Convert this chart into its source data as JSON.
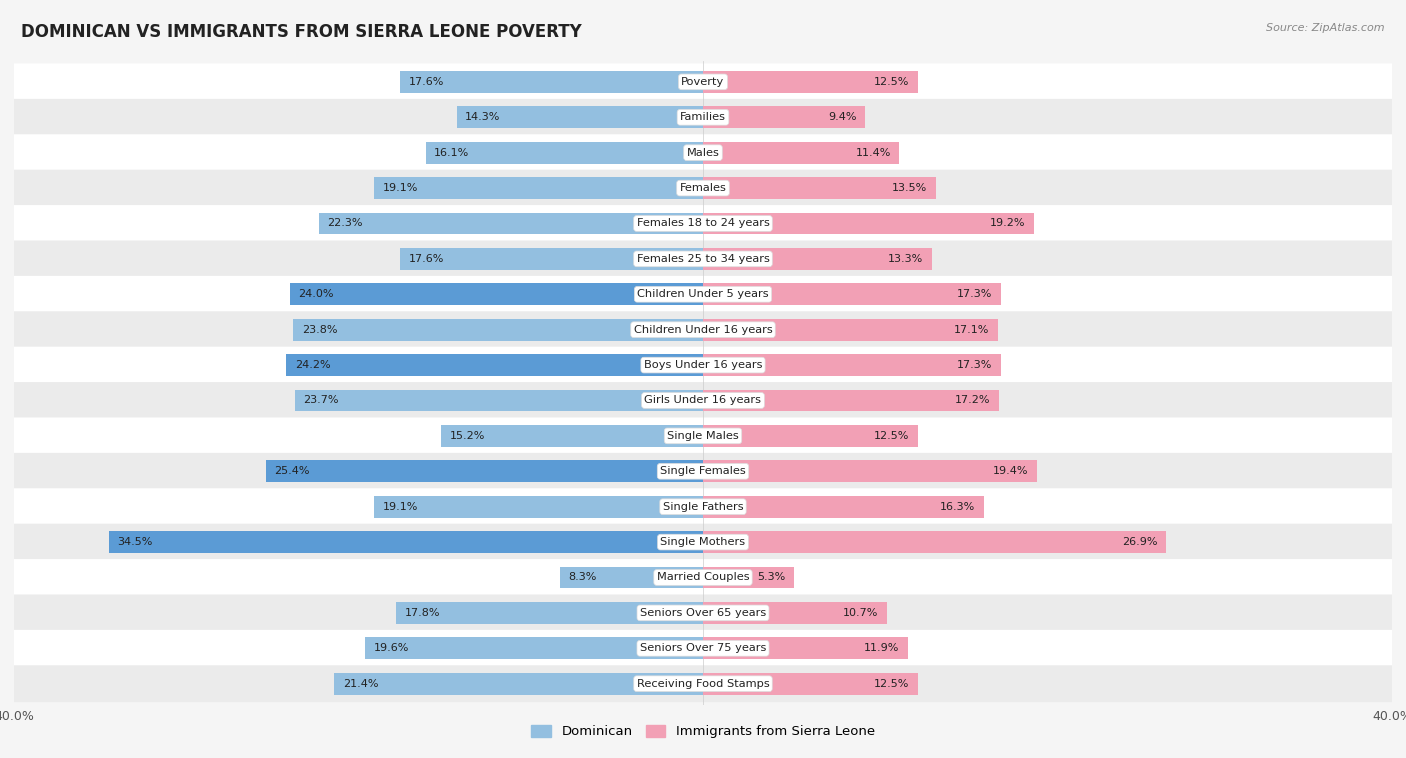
{
  "title": "DOMINICAN VS IMMIGRANTS FROM SIERRA LEONE POVERTY",
  "source": "Source: ZipAtlas.com",
  "categories": [
    "Poverty",
    "Families",
    "Males",
    "Females",
    "Females 18 to 24 years",
    "Females 25 to 34 years",
    "Children Under 5 years",
    "Children Under 16 years",
    "Boys Under 16 years",
    "Girls Under 16 years",
    "Single Males",
    "Single Females",
    "Single Fathers",
    "Single Mothers",
    "Married Couples",
    "Seniors Over 65 years",
    "Seniors Over 75 years",
    "Receiving Food Stamps"
  ],
  "dominican": [
    17.6,
    14.3,
    16.1,
    19.1,
    22.3,
    17.6,
    24.0,
    23.8,
    24.2,
    23.7,
    15.2,
    25.4,
    19.1,
    34.5,
    8.3,
    17.8,
    19.6,
    21.4
  ],
  "sierra_leone": [
    12.5,
    9.4,
    11.4,
    13.5,
    19.2,
    13.3,
    17.3,
    17.1,
    17.3,
    17.2,
    12.5,
    19.4,
    16.3,
    26.9,
    5.3,
    10.7,
    11.9,
    12.5
  ],
  "dominican_highlighted": [
    6,
    8,
    11,
    13
  ],
  "dominican_color": "#93bfe0",
  "dominican_highlight_color": "#5b9bd5",
  "sierra_leone_color": "#f2a0b5",
  "sierra_leone_highlight_color": "#e06b80",
  "axis_max": 40.0,
  "background_color": "#f5f5f5",
  "row_bg_light": "#ffffff",
  "row_bg_dark": "#ebebeb",
  "bar_height": 0.62
}
